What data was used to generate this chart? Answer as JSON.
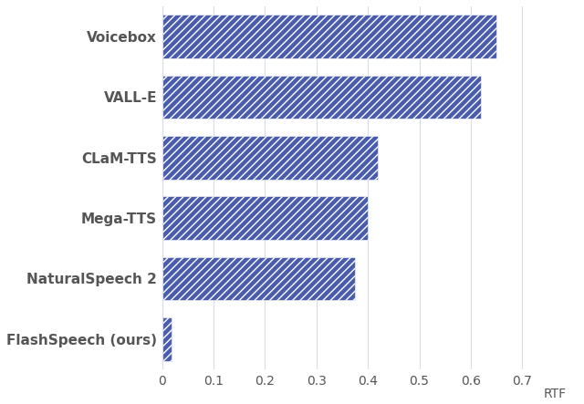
{
  "categories": [
    "FlashSpeech (ours)",
    "NaturalSpeech 2",
    "Mega-TTS",
    "CLaM-TTS",
    "VALL-E",
    "Voicebox"
  ],
  "values": [
    0.019,
    0.375,
    0.4,
    0.42,
    0.62,
    0.65
  ],
  "bar_color": "#4a5cad",
  "bar_hatch": "////",
  "xlabel": "RTF",
  "xlim": [
    0,
    0.72
  ],
  "xticks": [
    0,
    0.1,
    0.2,
    0.3,
    0.4,
    0.5,
    0.6,
    0.7
  ],
  "xtick_labels": [
    "0",
    "0.1",
    "0.2",
    "0.3",
    "0.4",
    "0.5",
    "0.6",
    "0.7"
  ],
  "grid_color": "#d8dce8",
  "background_color": "#ffffff",
  "label_color": "#555555",
  "label_fontsize": 11,
  "tick_fontsize": 10,
  "xlabel_fontsize": 10,
  "bar_height": 0.72,
  "figsize": [
    6.4,
    4.43
  ],
  "dpi": 100
}
